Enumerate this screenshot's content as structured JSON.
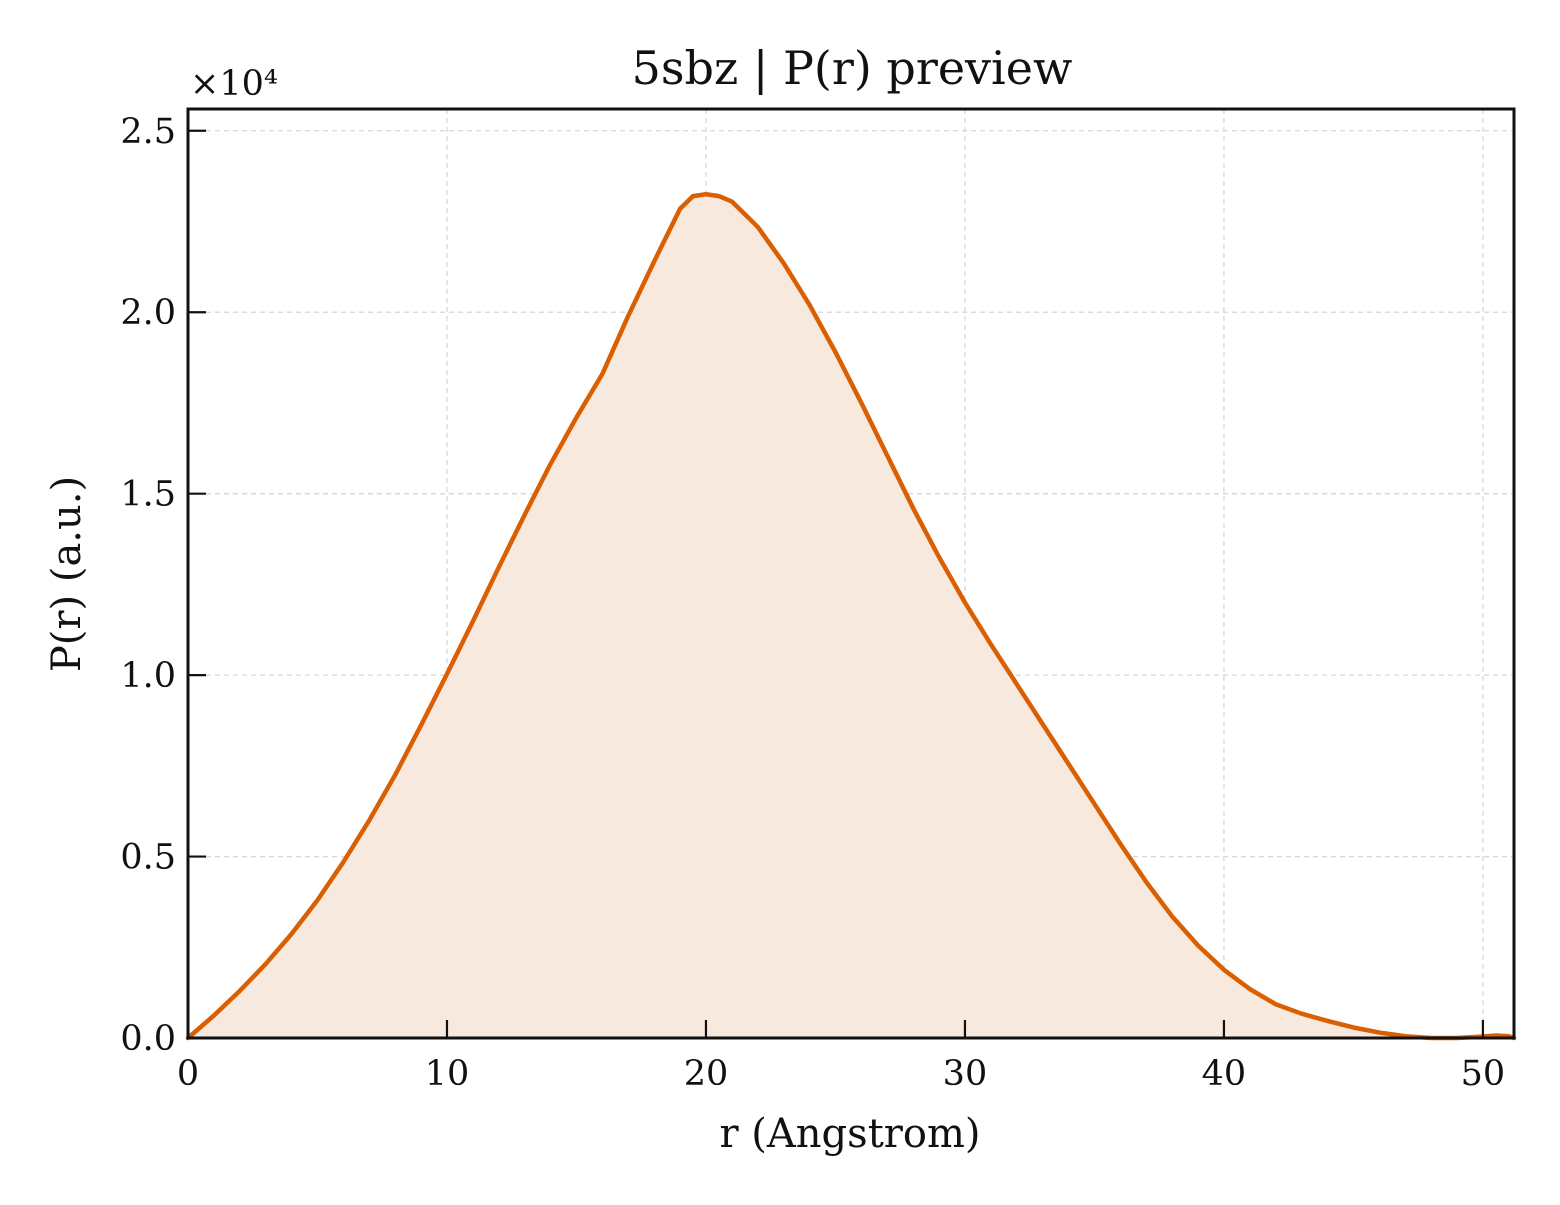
{
  "chart_data": {
    "type": "area",
    "title": "5sbz | P(r) preview",
    "xlabel": "r (Angstrom)",
    "ylabel": "P(r) (a.u.)",
    "y_multiplier_label": "×10⁴",
    "xlim": [
      0,
      51.2
    ],
    "ylim": [
      0,
      2.56
    ],
    "x_ticks": [
      0,
      10,
      20,
      30,
      40,
      50
    ],
    "y_ticks": [
      0.0,
      0.5,
      1.0,
      1.5,
      2.0,
      2.5
    ],
    "x_tick_labels": [
      "0",
      "10",
      "20",
      "30",
      "40",
      "50"
    ],
    "y_tick_labels": [
      "0.0",
      "0.5",
      "1.0",
      "1.5",
      "2.0",
      "2.5"
    ],
    "grid": true,
    "line_color": "#d95f02",
    "fill_color": "#f8e9de",
    "series": [
      {
        "x": [
          0,
          1,
          2,
          3,
          4,
          5,
          6,
          7,
          8,
          9,
          10,
          11,
          12,
          13,
          14,
          15,
          16,
          17,
          18,
          19,
          19.5,
          20,
          20.5,
          21,
          22,
          23,
          24,
          25,
          26,
          27,
          28,
          29,
          30,
          31,
          32,
          33,
          34,
          35,
          36,
          37,
          38,
          39,
          40,
          41,
          42,
          43,
          44,
          45,
          46,
          47,
          48,
          49,
          50,
          50.5,
          51,
          51.2
        ],
        "values": [
          0.0,
          0.062,
          0.13,
          0.204,
          0.287,
          0.38,
          0.485,
          0.6,
          0.725,
          0.862,
          1.003,
          1.148,
          1.297,
          1.442,
          1.582,
          1.71,
          1.83,
          1.99,
          2.14,
          2.285,
          2.32,
          2.325,
          2.32,
          2.305,
          2.235,
          2.135,
          2.02,
          1.89,
          1.75,
          1.605,
          1.46,
          1.325,
          1.2,
          1.085,
          0.975,
          0.865,
          0.755,
          0.645,
          0.535,
          0.43,
          0.335,
          0.255,
          0.188,
          0.135,
          0.093,
          0.067,
          0.047,
          0.029,
          0.015,
          0.005,
          0.0,
          0.0,
          0.004,
          0.007,
          0.005,
          0.0
        ]
      }
    ]
  }
}
